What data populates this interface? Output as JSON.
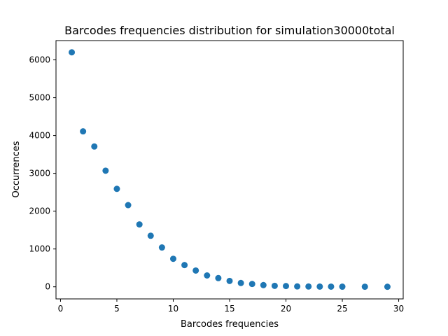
{
  "chart_data": {
    "type": "scatter",
    "title": "Barcodes frequencies distribution for simulation30000total",
    "xlabel": "Barcodes frequencies",
    "ylabel": "Occurrences",
    "xlim": [
      -0.4,
      30.4
    ],
    "ylim": [
      -320,
      6510
    ],
    "xticks": [
      0,
      5,
      10,
      15,
      20,
      25,
      30
    ],
    "yticks": [
      0,
      1000,
      2000,
      3000,
      4000,
      5000,
      6000
    ],
    "grid": false,
    "legend": "none",
    "marker_color": "#1f77b4",
    "points": [
      [
        1,
        6200
      ],
      [
        2,
        4110
      ],
      [
        3,
        3710
      ],
      [
        4,
        3070
      ],
      [
        5,
        2590
      ],
      [
        6,
        2160
      ],
      [
        7,
        1650
      ],
      [
        8,
        1350
      ],
      [
        9,
        1040
      ],
      [
        10,
        740
      ],
      [
        11,
        575
      ],
      [
        12,
        430
      ],
      [
        13,
        300
      ],
      [
        14,
        230
      ],
      [
        15,
        155
      ],
      [
        16,
        100
      ],
      [
        17,
        75
      ],
      [
        18,
        45
      ],
      [
        19,
        25
      ],
      [
        20,
        20
      ],
      [
        21,
        10
      ],
      [
        22,
        8
      ],
      [
        23,
        6
      ],
      [
        24,
        5
      ],
      [
        25,
        3
      ],
      [
        27,
        2
      ],
      [
        29,
        1
      ]
    ]
  }
}
